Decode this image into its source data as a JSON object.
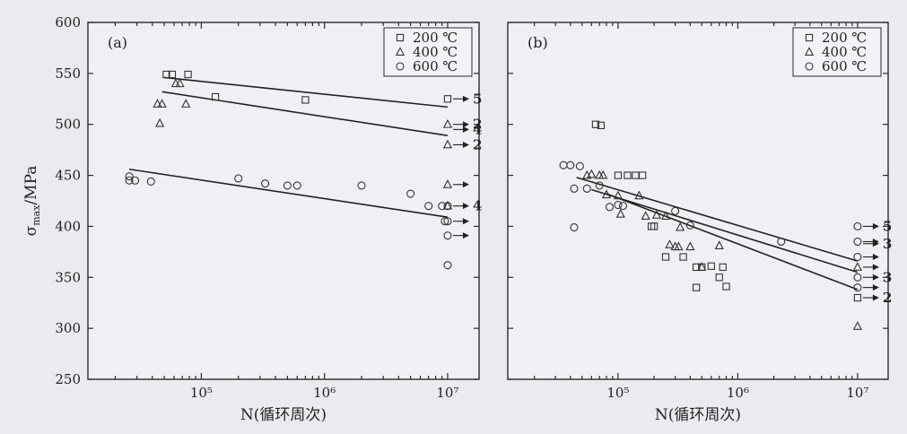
{
  "y_axis_label": "σmax/MPa",
  "y_axis_label_main": "σ",
  "y_axis_label_sub": "max",
  "y_axis_label_unit": "/MPa",
  "legend": {
    "entries": [
      {
        "marker": "square",
        "label": "200 ℃"
      },
      {
        "marker": "triangle",
        "label": "400 ℃"
      },
      {
        "marker": "circle",
        "label": "600 ℃"
      }
    ]
  },
  "chart_data": [
    {
      "type": "scatter",
      "panel": "(a)",
      "xlabel": "N(循环周次)",
      "ylabel": "σmax/MPa",
      "xscale": "log",
      "xlim": [
        12000,
        18000000
      ],
      "ylim": [
        250,
        600
      ],
      "xticks": [
        {
          "value": 100000,
          "label": "10⁵"
        },
        {
          "value": 1000000,
          "label": "10⁶"
        },
        {
          "value": 10000000,
          "label": "10⁷"
        }
      ],
      "yticks": [
        250,
        300,
        350,
        400,
        450,
        500,
        550,
        600
      ],
      "legend_position": "top-right",
      "series": [
        {
          "name": "200 ℃",
          "marker": "square",
          "points": [
            [
              52000,
              549
            ],
            [
              58000,
              549
            ],
            [
              78000,
              549
            ],
            [
              130000,
              527
            ],
            [
              700000,
              524
            ],
            [
              10000000,
              525
            ]
          ]
        },
        {
          "name": "400 ℃",
          "marker": "triangle",
          "points": [
            [
              44000,
              520
            ],
            [
              48000,
              520
            ],
            [
              46000,
              501
            ],
            [
              62000,
              540
            ],
            [
              67000,
              540
            ],
            [
              75000,
              520
            ],
            [
              10000000,
              500
            ],
            [
              10000000,
              480
            ],
            [
              10000000,
              441
            ],
            [
              10000000,
              420
            ]
          ]
        },
        {
          "name": "600 ℃",
          "marker": "circle",
          "points": [
            [
              26000,
              449
            ],
            [
              26000,
              445
            ],
            [
              29000,
              445
            ],
            [
              39000,
              444
            ],
            [
              200000,
              447
            ],
            [
              330000,
              442
            ],
            [
              500000,
              440
            ],
            [
              600000,
              440
            ],
            [
              2000000,
              440
            ],
            [
              5000000,
              432
            ],
            [
              7000000,
              420
            ],
            [
              9000000,
              420
            ],
            [
              10000000,
              420
            ],
            [
              9500000,
              405
            ],
            [
              10000000,
              405
            ],
            [
              10000000,
              391
            ],
            [
              10000000,
              362
            ]
          ]
        }
      ],
      "fit_lines": [
        {
          "from": [
            50000,
            546
          ],
          "to": [
            10000000,
            517
          ]
        },
        {
          "from": [
            48000,
            532
          ],
          "to": [
            10000000,
            489
          ]
        },
        {
          "from": [
            26000,
            456
          ],
          "to": [
            10000000,
            409
          ]
        }
      ],
      "runouts": [
        {
          "y": 525,
          "label": "5"
        },
        {
          "y": 500,
          "label": "2"
        },
        {
          "y": 495,
          "label": "4"
        },
        {
          "y": 480,
          "label": "2"
        },
        {
          "y": 441,
          "label": ""
        },
        {
          "y": 420,
          "label": "4"
        },
        {
          "y": 405,
          "label": ""
        },
        {
          "y": 391,
          "label": ""
        }
      ]
    },
    {
      "type": "scatter",
      "panel": "(b)",
      "xlabel": "N(循环周次)",
      "ylabel": "σmax/MPa",
      "xscale": "log",
      "xlim": [
        12000,
        18000000
      ],
      "ylim": [
        250,
        600
      ],
      "xticks": [
        {
          "value": 100000,
          "label": "10⁵"
        },
        {
          "value": 1000000,
          "label": "10⁶"
        },
        {
          "value": 10000000,
          "label": "10⁷"
        }
      ],
      "yticks": [
        250,
        300,
        350,
        400,
        450,
        500,
        550,
        600
      ],
      "legend_position": "top-right",
      "series": [
        {
          "name": "200 ℃",
          "marker": "square",
          "points": [
            [
              65000,
              500
            ],
            [
              72000,
              499
            ],
            [
              100000,
              450
            ],
            [
              120000,
              450
            ],
            [
              140000,
              450
            ],
            [
              160000,
              450
            ],
            [
              190000,
              400
            ],
            [
              200000,
              400
            ],
            [
              250000,
              370
            ],
            [
              350000,
              370
            ],
            [
              450000,
              360
            ],
            [
              500000,
              360
            ],
            [
              600000,
              361
            ],
            [
              700000,
              350
            ],
            [
              750000,
              360
            ],
            [
              800000,
              341
            ],
            [
              450000,
              340
            ],
            [
              10000000,
              330
            ]
          ]
        },
        {
          "name": "400 ℃",
          "marker": "triangle",
          "points": [
            [
              55000,
              450
            ],
            [
              60000,
              451
            ],
            [
              70000,
              450
            ],
            [
              75000,
              450
            ],
            [
              80000,
              431
            ],
            [
              100000,
              430
            ],
            [
              105000,
              412
            ],
            [
              150000,
              430
            ],
            [
              170000,
              410
            ],
            [
              210000,
              411
            ],
            [
              250000,
              410
            ],
            [
              270000,
              382
            ],
            [
              300000,
              380
            ],
            [
              320000,
              380
            ],
            [
              330000,
              399
            ],
            [
              400000,
              380
            ],
            [
              500000,
              360
            ],
            [
              700000,
              381
            ],
            [
              10000000,
              360
            ],
            [
              10000000,
              302
            ]
          ]
        },
        {
          "name": "600 ℃",
          "marker": "circle",
          "points": [
            [
              35000,
              460
            ],
            [
              40000,
              460
            ],
            [
              48000,
              459
            ],
            [
              43000,
              437
            ],
            [
              43000,
              399
            ],
            [
              55000,
              437
            ],
            [
              70000,
              440
            ],
            [
              85000,
              419
            ],
            [
              100000,
              421
            ],
            [
              110000,
              420
            ],
            [
              300000,
              415
            ],
            [
              400000,
              401
            ],
            [
              2300000,
              385
            ],
            [
              10000000,
              400
            ],
            [
              10000000,
              385
            ],
            [
              10000000,
              370
            ],
            [
              10000000,
              350
            ],
            [
              10000000,
              340
            ]
          ]
        }
      ],
      "fit_lines": [
        {
          "from": [
            45000,
            448
          ],
          "to": [
            10000000,
            366
          ]
        },
        {
          "from": [
            60000,
            436
          ],
          "to": [
            10000000,
            355
          ]
        },
        {
          "from": [
            80000,
            432
          ],
          "to": [
            10000000,
            338
          ]
        }
      ],
      "runouts": [
        {
          "y": 400,
          "label": "5"
        },
        {
          "y": 385,
          "label": ""
        },
        {
          "y": 383,
          "label": "3"
        },
        {
          "y": 370,
          "label": ""
        },
        {
          "y": 360,
          "label": ""
        },
        {
          "y": 350,
          "label": "3"
        },
        {
          "y": 340,
          "label": ""
        },
        {
          "y": 330,
          "label": "2"
        }
      ]
    }
  ]
}
